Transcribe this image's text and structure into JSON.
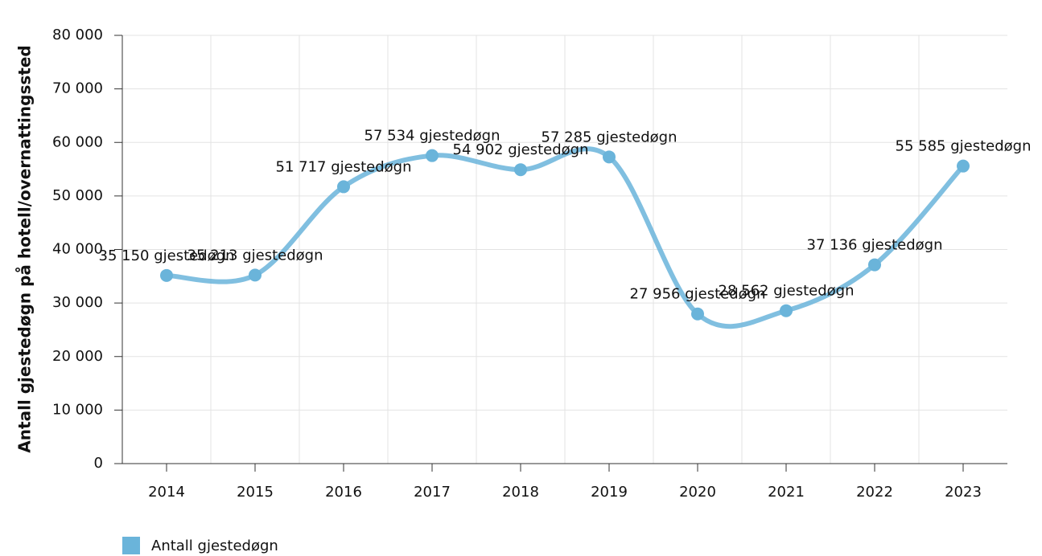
{
  "chart_data": {
    "type": "line",
    "y_label": "Antall gjestedøgn på hotell/overnattingssted",
    "categories": [
      "2014",
      "2015",
      "2016",
      "2017",
      "2018",
      "2019",
      "2020",
      "2021",
      "2022",
      "2023"
    ],
    "series": [
      {
        "name": "Antall gjestedøgn",
        "color": "#6ab4da",
        "values": [
          35150,
          35213,
          51717,
          57534,
          54902,
          57285,
          27956,
          28562,
          37136,
          55585
        ],
        "value_labels": [
          "35 150 gjestedøgn",
          "35 213 gjestedøgn",
          "51 717 gjestedøgn",
          "57 534 gjestedøgn",
          "54 902 gjestedøgn",
          "57 285 gjestedøgn",
          "27 956 gjestedøgn",
          "28 562 gjestedøgn",
          "37 136 gjestedøgn",
          "55 585 gjestedøgn"
        ]
      }
    ],
    "ylim": [
      0,
      80000
    ],
    "yticks": [
      0,
      {
        "value": 10000,
        "label": "10 000"
      },
      {
        "value": 20000,
        "label": "20 000"
      },
      {
        "value": 30000,
        "label": "30 000"
      },
      {
        "value": 40000,
        "label": "40 000"
      },
      {
        "value": 50000,
        "label": "50 000"
      },
      {
        "value": 60000,
        "label": "60 000"
      },
      {
        "value": 70000,
        "label": "70 000"
      },
      {
        "value": 80000,
        "label": "80 000"
      }
    ],
    "grid": true,
    "legend": "bottom-left"
  }
}
